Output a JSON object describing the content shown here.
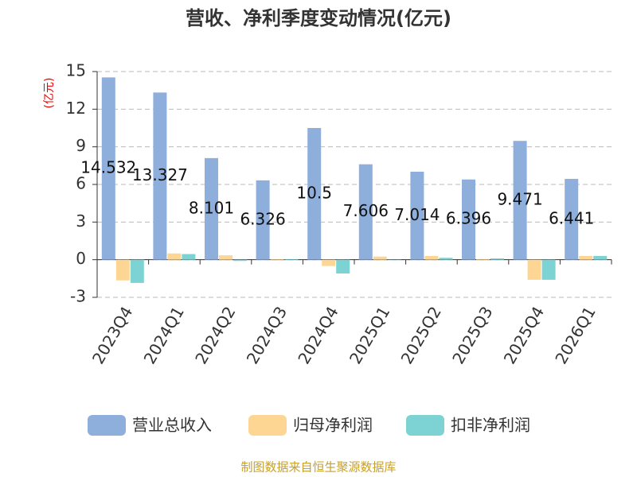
{
  "chart_data": {
    "type": "bar",
    "title": "营收、净利季度变动情况(亿元)",
    "y_label": "(亿元)",
    "source": "制图数据来自恒生聚源数据库",
    "categories": [
      "2023Q4",
      "2024Q1",
      "2024Q2",
      "2024Q3",
      "2024Q4",
      "2025Q1",
      "2025Q2",
      "2025Q3",
      "2025Q4",
      "2026Q1"
    ],
    "series": [
      {
        "name": "营业总收入",
        "color": "#8eaedc",
        "values": [
          14.532,
          13.327,
          8.101,
          6.326,
          10.5,
          7.606,
          7.014,
          6.396,
          9.471,
          6.441
        ]
      },
      {
        "name": "归母净利润",
        "color": "#fdd694",
        "values": [
          -1.65,
          0.5,
          0.35,
          0.05,
          -0.5,
          0.25,
          0.3,
          0.05,
          -1.6,
          0.3
        ]
      },
      {
        "name": "扣非净利润",
        "color": "#7dd3d4",
        "values": [
          -1.85,
          0.45,
          -0.1,
          0.05,
          -1.1,
          0.02,
          0.15,
          0.1,
          -1.6,
          0.3
        ]
      }
    ],
    "ylim": [
      -3,
      15
    ],
    "yticks": [
      -3,
      0,
      3,
      6,
      9,
      12,
      15
    ],
    "grid": true
  }
}
